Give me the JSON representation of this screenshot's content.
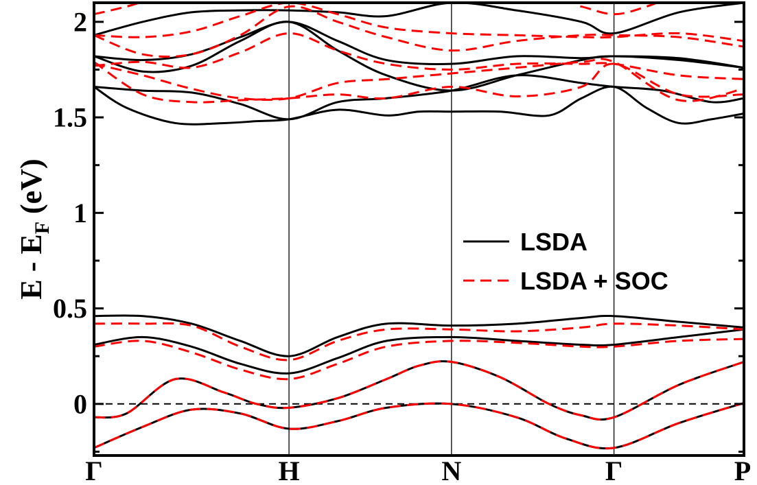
{
  "chart_data": {
    "type": "line",
    "ylabel": "E - E",
    "ylabel_sub": "F",
    "ylabel_unit": " (eV)",
    "xlim": [
      0,
      4
    ],
    "ylim": [
      -0.27,
      2.1
    ],
    "y_ticks": [
      {
        "value": 0,
        "label": "0"
      },
      {
        "value": 0.5,
        "label": "0.5"
      },
      {
        "value": 1,
        "label": "1"
      },
      {
        "value": 1.5,
        "label": "1.5"
      },
      {
        "value": 2,
        "label": "2"
      }
    ],
    "y_minor_ticks": [
      -0.25,
      0.25,
      0.75,
      1.25,
      1.75
    ],
    "k_points": [
      {
        "x": 0,
        "label": "Γ"
      },
      {
        "x": 1.2,
        "label": "H"
      },
      {
        "x": 2.2,
        "label": "N"
      },
      {
        "x": 3.2,
        "label": "Γ"
      },
      {
        "x": 4,
        "label": "P"
      }
    ],
    "fermi_level": 0,
    "legend": {
      "position": "right-center",
      "entries": [
        "LSDA",
        "LSDA + SOC"
      ]
    },
    "colors": {
      "lsda": "#000000",
      "soc": "#ff0000"
    },
    "series": [
      {
        "name": "LSDA",
        "style": "solid",
        "bands": [
          {
            "x": [
              0,
              0.3,
              0.6,
              0.9,
              1.2,
              1.5,
              1.8,
              2.2,
              2.6,
              2.9,
              3.2,
              3.6,
              4.0
            ],
            "y": [
              -0.23,
              -0.12,
              -0.03,
              -0.05,
              -0.13,
              -0.09,
              -0.02,
              0.0,
              -0.07,
              -0.18,
              -0.23,
              -0.1,
              0.005
            ]
          },
          {
            "x": [
              0,
              0.2,
              0.5,
              0.8,
              1.0,
              1.2,
              1.5,
              1.8,
              2.0,
              2.2,
              2.5,
              2.8,
              3.0,
              3.2,
              3.6,
              4.0
            ],
            "y": [
              -0.07,
              -0.05,
              0.13,
              0.06,
              0.0,
              -0.02,
              0.03,
              0.13,
              0.2,
              0.22,
              0.14,
              0.0,
              -0.06,
              -0.07,
              0.1,
              0.22
            ]
          },
          {
            "x": [
              0,
              0.3,
              0.6,
              0.9,
              1.2,
              1.5,
              1.8,
              2.2,
              2.6,
              3.0,
              3.2,
              3.6,
              4.0
            ],
            "y": [
              0.31,
              0.35,
              0.3,
              0.21,
              0.16,
              0.24,
              0.33,
              0.35,
              0.33,
              0.31,
              0.31,
              0.35,
              0.39
            ]
          },
          {
            "x": [
              0,
              0.3,
              0.6,
              0.9,
              1.2,
              1.5,
              1.8,
              2.2,
              2.6,
              3.0,
              3.2,
              3.6,
              4.0
            ],
            "y": [
              0.46,
              0.46,
              0.42,
              0.33,
              0.25,
              0.35,
              0.42,
              0.41,
              0.42,
              0.45,
              0.46,
              0.43,
              0.4
            ]
          },
          {
            "x": [
              0,
              0.2,
              0.5,
              0.8,
              1.0,
              1.2,
              1.5,
              1.8,
              2.0,
              2.2,
              2.5,
              2.8,
              3.0,
              3.2,
              3.4,
              3.6,
              3.8,
              4.0
            ],
            "y": [
              1.66,
              1.55,
              1.47,
              1.47,
              1.48,
              1.49,
              1.54,
              1.51,
              1.53,
              1.53,
              1.53,
              1.51,
              1.6,
              1.66,
              1.55,
              1.47,
              1.49,
              1.52
            ]
          },
          {
            "x": [
              0,
              0.3,
              0.6,
              0.9,
              1.2,
              1.5,
              1.8,
              2.2,
              2.6,
              3.0,
              3.2,
              3.5,
              3.8,
              4.0
            ],
            "y": [
              1.66,
              1.64,
              1.63,
              1.57,
              1.49,
              1.58,
              1.6,
              1.64,
              1.72,
              1.68,
              1.66,
              1.64,
              1.58,
              1.6
            ]
          },
          {
            "x": [
              0,
              0.3,
              0.6,
              0.9,
              1.2,
              1.5,
              1.8,
              2.2,
              2.6,
              3.0,
              3.2,
              3.6,
              4.0
            ],
            "y": [
              1.82,
              1.74,
              1.77,
              1.9,
              2.0,
              1.85,
              1.72,
              1.64,
              1.72,
              1.8,
              1.82,
              1.8,
              1.76
            ]
          },
          {
            "x": [
              0,
              0.3,
              0.6,
              0.9,
              1.2,
              1.5,
              1.8,
              2.2,
              2.6,
              3.0,
              3.2,
              3.6,
              4.0
            ],
            "y": [
              1.82,
              1.8,
              1.83,
              1.92,
              2.0,
              1.9,
              1.8,
              1.78,
              1.82,
              1.81,
              1.82,
              1.81,
              1.76
            ]
          },
          {
            "x": [
              0,
              0.3,
              0.6,
              0.9,
              1.2,
              1.5,
              1.8,
              2.2,
              2.6,
              3.0,
              3.2,
              3.6,
              4.0
            ],
            "y": [
              1.93,
              2.0,
              2.05,
              2.06,
              2.06,
              2.05,
              2.03,
              2.1,
              2.06,
              2.0,
              1.94,
              2.05,
              2.1
            ]
          }
        ]
      },
      {
        "name": "LSDA + SOC",
        "style": "dashed",
        "bands": [
          {
            "x": [
              0,
              0.3,
              0.6,
              0.9,
              1.2,
              1.5,
              1.8,
              2.2,
              2.6,
              2.9,
              3.2,
              3.6,
              4.0
            ],
            "y": [
              -0.23,
              -0.12,
              -0.03,
              -0.05,
              -0.13,
              -0.09,
              -0.02,
              0.0,
              -0.07,
              -0.18,
              -0.23,
              -0.1,
              0.005
            ]
          },
          {
            "x": [
              0,
              0.2,
              0.5,
              0.8,
              1.0,
              1.2,
              1.5,
              1.8,
              2.0,
              2.2,
              2.5,
              2.8,
              3.0,
              3.2,
              3.6,
              4.0
            ],
            "y": [
              -0.07,
              -0.05,
              0.13,
              0.06,
              0.0,
              -0.02,
              0.03,
              0.13,
              0.2,
              0.22,
              0.14,
              0.0,
              -0.06,
              -0.07,
              0.1,
              0.22
            ]
          },
          {
            "x": [
              0,
              0.3,
              0.6,
              0.9,
              1.2,
              1.5,
              1.8,
              2.2,
              2.6,
              3.0,
              3.2,
              3.6,
              4.0
            ],
            "y": [
              0.3,
              0.33,
              0.27,
              0.18,
              0.13,
              0.21,
              0.3,
              0.33,
              0.32,
              0.3,
              0.3,
              0.33,
              0.34
            ]
          },
          {
            "x": [
              0,
              0.3,
              0.6,
              0.9,
              1.2,
              1.5,
              1.8,
              2.2,
              2.6,
              3.0,
              3.2,
              3.6,
              4.0
            ],
            "y": [
              0.42,
              0.42,
              0.41,
              0.3,
              0.23,
              0.33,
              0.39,
              0.39,
              0.38,
              0.4,
              0.42,
              0.41,
              0.39
            ]
          },
          {
            "x": [
              0,
              0.3,
              0.6,
              0.9,
              1.2,
              1.5,
              1.8,
              2.2,
              2.6,
              3.0,
              3.2,
              3.6,
              4.0
            ],
            "y": [
              1.79,
              1.62,
              1.58,
              1.59,
              1.6,
              1.62,
              1.6,
              1.66,
              1.61,
              1.66,
              1.78,
              1.62,
              1.62
            ]
          },
          {
            "x": [
              0,
              0.3,
              0.6,
              0.9,
              1.2,
              1.5,
              1.8,
              2.2,
              2.6,
              3.0,
              3.2,
              3.6,
              4.0
            ],
            "y": [
              1.78,
              1.72,
              1.65,
              1.6,
              1.6,
              1.68,
              1.7,
              1.73,
              1.76,
              1.79,
              1.79,
              1.59,
              1.65
            ]
          },
          {
            "x": [
              0,
              0.3,
              0.6,
              0.9,
              1.2,
              1.5,
              1.8,
              2.2,
              2.6,
              3.0,
              3.2,
              3.6,
              4.0
            ],
            "y": [
              1.77,
              1.79,
              1.76,
              1.84,
              1.94,
              1.85,
              1.78,
              1.75,
              1.78,
              1.78,
              1.78,
              1.72,
              1.7
            ]
          },
          {
            "x": [
              0,
              0.3,
              0.6,
              0.9,
              1.2,
              1.5,
              1.8,
              2.2,
              2.6,
              3.0,
              3.2,
              3.6,
              4.0
            ],
            "y": [
              1.93,
              1.83,
              1.83,
              1.93,
              2.08,
              2.0,
              1.92,
              1.85,
              1.9,
              1.93,
              1.93,
              1.92,
              1.87
            ]
          },
          {
            "x": [
              0,
              0.3,
              0.6,
              0.9,
              1.2,
              1.5,
              1.8,
              2.2,
              2.6,
              3.0,
              3.2,
              3.6,
              4.0
            ],
            "y": [
              1.93,
              1.92,
              1.95,
              2.03,
              2.1,
              2.04,
              1.97,
              1.94,
              1.93,
              1.92,
              1.92,
              1.94,
              1.9
            ]
          },
          {
            "x": [
              0,
              0.2,
              0.5,
              0.8,
              1.0,
              1.2,
              2.8,
              3.0,
              3.2,
              3.4,
              3.6
            ],
            "y": [
              2.04,
              2.08,
              2.15,
              2.15,
              2.12,
              2.1,
              2.12,
              2.08,
              2.04,
              2.08,
              2.15
            ]
          }
        ]
      }
    ]
  }
}
